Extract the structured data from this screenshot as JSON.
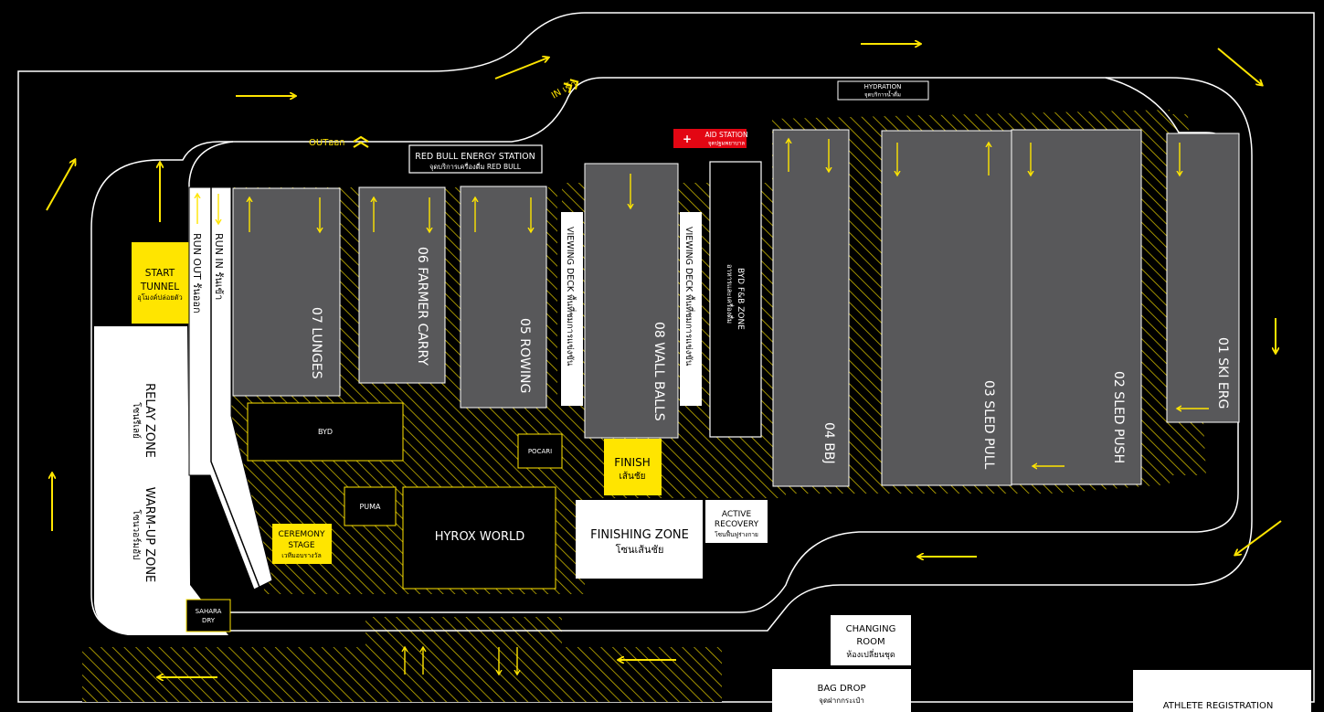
{
  "colors": {
    "background": "#000000",
    "accent": "#ffe500",
    "zone": "#58585a",
    "aid": "#e30613",
    "outline": "#ffffff"
  },
  "route": {
    "in_label": "IN เข้า",
    "out_label": "OUTออก"
  },
  "stations": {
    "lunges": "07 LUNGES",
    "farmer_carry": "06 FARMER CARRY",
    "rowing": "05 ROWING",
    "wall_balls": "08 WALL BALLS",
    "bbj": "04 BBJ",
    "sled_pull": "03 SLED PULL",
    "sled_push": "02 SLED PUSH",
    "ski_erg": "01 SKI ERG"
  },
  "zones": {
    "run_in": "RUN IN รันเข้า",
    "run_out": "RUN OUT รันออก",
    "start_tunnel_1": "START",
    "start_tunnel_2": "TUNNEL",
    "start_tunnel_th": "อุโมงค์ปล่อยตัว",
    "relay_zone": "RELAY ZONE",
    "relay_zone_th": "โซนรีเลย์",
    "warmup_zone": "WARM-UP ZONE",
    "warmup_zone_th": "โซนวอร์มอัป",
    "red_bull": "RED BULL ENERGY STATION",
    "red_bull_th": "จุดบริการเครื่องดื่ม RED BULL",
    "aid_station": "AID STATION",
    "aid_station_th": "จุดปฐมพยาบาล",
    "hydration": "HYDRATION",
    "hydration_th": "จุดบริการน้ำดื่ม",
    "viewing_deck_1": "VIEWING DECK พื้นที่ชมการแข่งขัน",
    "viewing_deck_2": "VIEWING DECK พื้นที่ชมการแข่งขัน",
    "byd_fb": "BYD F&B ZONE",
    "byd_fb_th": "อาหารและเครื่องดื่ม",
    "byd": "BYD",
    "pocari": "POCARI",
    "puma": "PUMA",
    "finish": "FINISH",
    "finish_th": "เส้นชัย",
    "ceremony_1": "CEREMONY",
    "ceremony_2": "STAGE",
    "ceremony_th": "เวทีมอบรางวัล",
    "hyrox_world": "HYROX WORLD",
    "finishing_zone": "FINISHING ZONE",
    "finishing_zone_th": "โซนเส้นชัย",
    "active_recovery_1": "ACTIVE",
    "active_recovery_2": "RECOVERY",
    "active_recovery_th": "โซนฟื้นฟูร่างกาย",
    "sahara_1": "SAHARA",
    "sahara_2": "DRY",
    "changing_room_1": "CHANGING",
    "changing_room_2": "ROOM",
    "changing_room_th": "ห้องเปลี่ยนชุด",
    "bag_drop": "BAG DROP",
    "bag_drop_th": "จุดฝากกระเป๋า",
    "athlete_registration": "ATHLETE REGISTRATION"
  }
}
